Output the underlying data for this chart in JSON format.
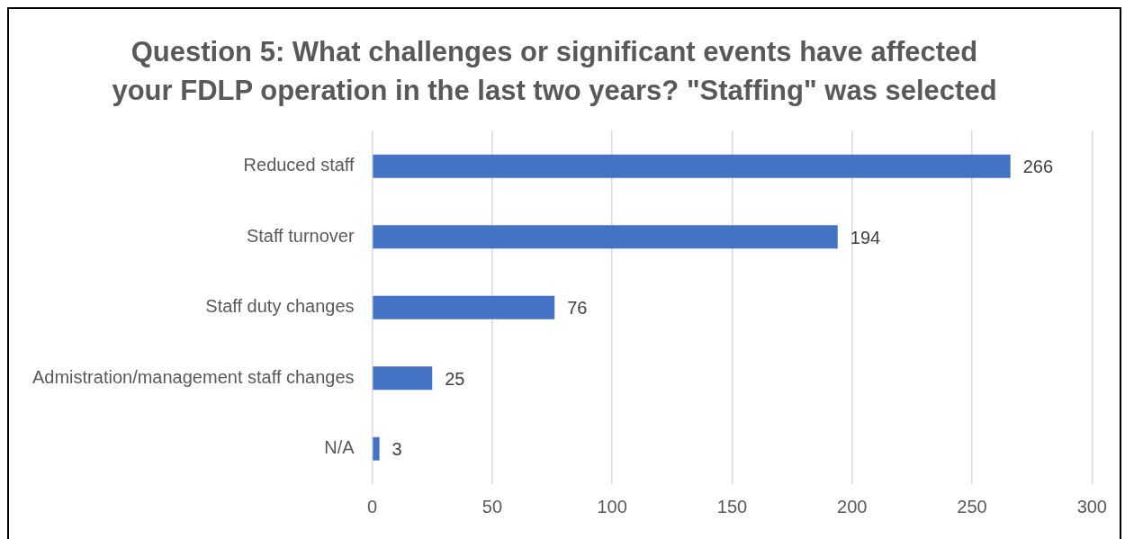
{
  "chart_data": {
    "type": "bar",
    "orientation": "horizontal",
    "title": "Question 5: What challenges or significant events have affected your FDLP operation in the last two years? \"Staffing\" was selected",
    "categories": [
      "Reduced staff",
      "Staff turnover",
      "Staff duty changes",
      "Admistration/management staff changes",
      "N/A"
    ],
    "values": [
      266,
      194,
      76,
      25,
      3
    ],
    "color": "#4472c4",
    "xlim": [
      0,
      300
    ],
    "xticks": [
      0,
      50,
      100,
      150,
      200,
      250,
      300
    ],
    "grid": "x",
    "legend": false,
    "data_labels": true
  }
}
